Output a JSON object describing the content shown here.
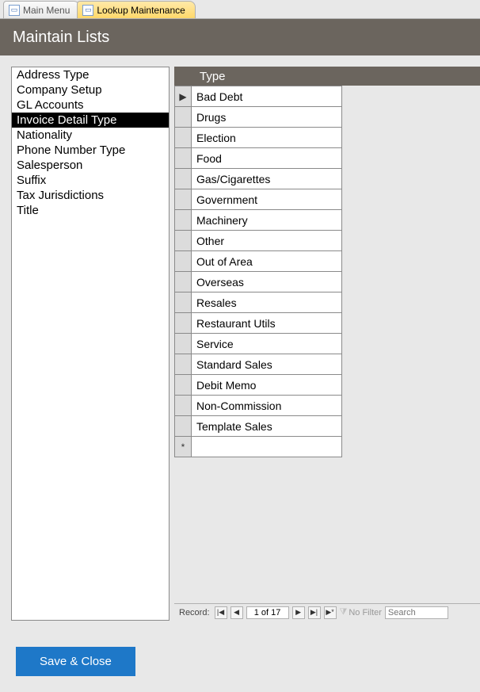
{
  "tabs": [
    {
      "label": "Main Menu",
      "active": false
    },
    {
      "label": "Lookup Maintenance",
      "active": true
    }
  ],
  "header": {
    "title": "Maintain Lists"
  },
  "sidebar": {
    "items": [
      "Address Type",
      "Company Setup",
      "GL Accounts",
      "Invoice Detail Type",
      "Nationality",
      "Phone Number Type",
      "Salesperson",
      "Suffix",
      "Tax Jurisdictions",
      "Title"
    ],
    "selected_index": 3
  },
  "grid": {
    "column_header": "Type",
    "rows": [
      "Bad Debt",
      "Drugs",
      "Election",
      "Food",
      "Gas/Cigarettes",
      "Government",
      "Machinery",
      "Other",
      "Out of Area",
      "Overseas",
      "Resales",
      "Restaurant Utils",
      "Service",
      "Standard Sales",
      "Debit Memo",
      "Non-Commission",
      "Template Sales"
    ],
    "current_row_marker": "▶",
    "new_row_marker": "*"
  },
  "record_nav": {
    "label": "Record:",
    "position_text": "1 of 17",
    "first": "|◀",
    "prev": "◀",
    "next": "▶",
    "last": "▶|",
    "new": "▶*",
    "no_filter_label": "No Filter",
    "search_placeholder": "Search"
  },
  "footer": {
    "save_close_label": "Save & Close"
  },
  "colors": {
    "header_bg": "#6b655e",
    "accent_tab": "#ffd86a",
    "primary_button": "#1e78c8",
    "selection_bg": "#000000",
    "selection_fg": "#ffffff",
    "grid_border": "#8a8a8a",
    "page_bg": "#e8e8e8"
  }
}
